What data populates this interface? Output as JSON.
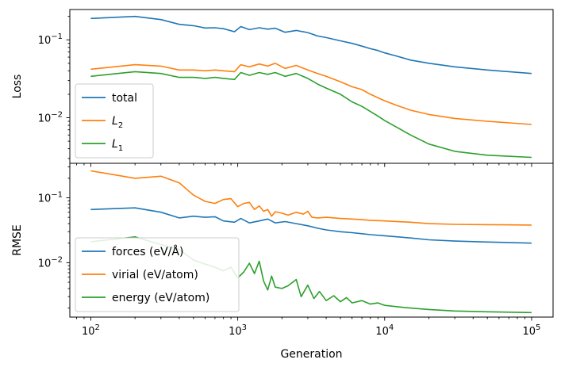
{
  "chart_data": [
    {
      "type": "line",
      "title": "",
      "xlabel": "",
      "ylabel": "Loss",
      "xscale": "log",
      "yscale": "log",
      "xlim": [
        72,
        140000
      ],
      "ylim": [
        0.0026,
        0.245
      ],
      "yticks": [
        {
          "value": 0.01,
          "base": "10",
          "exp": "−2"
        },
        {
          "value": 0.1,
          "base": "10",
          "exp": "−1"
        }
      ],
      "legend_position": "lower-left",
      "grid": false,
      "series": [
        {
          "name": "total",
          "sub": "",
          "color": "#1f77b4",
          "points": [
            [
              100,
              0.188
            ],
            [
              200,
              0.2
            ],
            [
              300,
              0.182
            ],
            [
              400,
              0.158
            ],
            [
              500,
              0.152
            ],
            [
              600,
              0.142
            ],
            [
              700,
              0.143
            ],
            [
              800,
              0.139
            ],
            [
              950,
              0.127
            ],
            [
              1050,
              0.148
            ],
            [
              1200,
              0.135
            ],
            [
              1400,
              0.143
            ],
            [
              1600,
              0.137
            ],
            [
              1800,
              0.141
            ],
            [
              2100,
              0.125
            ],
            [
              2500,
              0.132
            ],
            [
              3000,
              0.124
            ],
            [
              3500,
              0.112
            ],
            [
              4000,
              0.107
            ],
            [
              5000,
              0.097
            ],
            [
              6000,
              0.09
            ],
            [
              7000,
              0.083
            ],
            [
              8000,
              0.077
            ],
            [
              9000,
              0.073
            ],
            [
              10000,
              0.068
            ],
            [
              12000,
              0.062
            ],
            [
              15000,
              0.055
            ],
            [
              20000,
              0.05
            ],
            [
              30000,
              0.045
            ],
            [
              50000,
              0.041
            ],
            [
              100000,
              0.037
            ]
          ]
        },
        {
          "name": "L",
          "sub": "2",
          "color": "#ff7f0e",
          "points": [
            [
              100,
              0.042
            ],
            [
              200,
              0.048
            ],
            [
              300,
              0.046
            ],
            [
              400,
              0.041
            ],
            [
              500,
              0.041
            ],
            [
              600,
              0.04
            ],
            [
              700,
              0.041
            ],
            [
              800,
              0.04
            ],
            [
              950,
              0.039
            ],
            [
              1050,
              0.048
            ],
            [
              1200,
              0.045
            ],
            [
              1400,
              0.049
            ],
            [
              1600,
              0.046
            ],
            [
              1800,
              0.05
            ],
            [
              2100,
              0.043
            ],
            [
              2500,
              0.047
            ],
            [
              3000,
              0.041
            ],
            [
              3500,
              0.037
            ],
            [
              4000,
              0.034
            ],
            [
              5000,
              0.029
            ],
            [
              6000,
              0.025
            ],
            [
              7000,
              0.023
            ],
            [
              8000,
              0.02
            ],
            [
              9000,
              0.018
            ],
            [
              10000,
              0.0165
            ],
            [
              12000,
              0.0145
            ],
            [
              15000,
              0.0125
            ],
            [
              20000,
              0.011
            ],
            [
              30000,
              0.0098
            ],
            [
              50000,
              0.009
            ],
            [
              100000,
              0.0082
            ]
          ]
        },
        {
          "name": "L",
          "sub": "1",
          "color": "#2ca02c",
          "points": [
            [
              100,
              0.034
            ],
            [
              200,
              0.039
            ],
            [
              300,
              0.037
            ],
            [
              400,
              0.033
            ],
            [
              500,
              0.033
            ],
            [
              600,
              0.032
            ],
            [
              700,
              0.033
            ],
            [
              800,
              0.032
            ],
            [
              950,
              0.031
            ],
            [
              1050,
              0.038
            ],
            [
              1200,
              0.035
            ],
            [
              1400,
              0.038
            ],
            [
              1600,
              0.036
            ],
            [
              1800,
              0.038
            ],
            [
              2100,
              0.034
            ],
            [
              2500,
              0.037
            ],
            [
              3000,
              0.032
            ],
            [
              3500,
              0.027
            ],
            [
              4000,
              0.024
            ],
            [
              5000,
              0.02
            ],
            [
              6000,
              0.016
            ],
            [
              7000,
              0.014
            ],
            [
              8000,
              0.012
            ],
            [
              9000,
              0.0105
            ],
            [
              10000,
              0.0092
            ],
            [
              12000,
              0.0076
            ],
            [
              15000,
              0.006
            ],
            [
              20000,
              0.0046
            ],
            [
              30000,
              0.0037
            ],
            [
              50000,
              0.0033
            ],
            [
              100000,
              0.0031
            ]
          ]
        }
      ]
    },
    {
      "type": "line",
      "title": "",
      "xlabel": "Generation",
      "ylabel": "RMSE",
      "xscale": "log",
      "yscale": "log",
      "xlim": [
        72,
        140000
      ],
      "ylim": [
        0.00145,
        0.34
      ],
      "xticks": [
        {
          "value": 100,
          "base": "10",
          "exp": "2"
        },
        {
          "value": 1000,
          "base": "10",
          "exp": "3"
        },
        {
          "value": 10000,
          "base": "10",
          "exp": "4"
        },
        {
          "value": 100000,
          "base": "10",
          "exp": "5"
        }
      ],
      "yticks": [
        {
          "value": 0.01,
          "base": "10",
          "exp": "−2"
        },
        {
          "value": 0.1,
          "base": "10",
          "exp": "−1"
        }
      ],
      "legend_position": "lower-left",
      "grid": false,
      "series": [
        {
          "name": "forces (eV/Å)",
          "sub": "",
          "color": "#1f77b4",
          "points": [
            [
              100,
              0.066
            ],
            [
              200,
              0.07
            ],
            [
              300,
              0.06
            ],
            [
              400,
              0.049
            ],
            [
              500,
              0.052
            ],
            [
              600,
              0.05
            ],
            [
              700,
              0.051
            ],
            [
              800,
              0.044
            ],
            [
              950,
              0.042
            ],
            [
              1050,
              0.048
            ],
            [
              1200,
              0.041
            ],
            [
              1400,
              0.044
            ],
            [
              1600,
              0.047
            ],
            [
              1800,
              0.041
            ],
            [
              2100,
              0.043
            ],
            [
              2500,
              0.04
            ],
            [
              3000,
              0.037
            ],
            [
              3500,
              0.034
            ],
            [
              4000,
              0.032
            ],
            [
              5000,
              0.03
            ],
            [
              6000,
              0.029
            ],
            [
              7000,
              0.028
            ],
            [
              8000,
              0.027
            ],
            [
              10000,
              0.026
            ],
            [
              15000,
              0.024
            ],
            [
              20000,
              0.0225
            ],
            [
              30000,
              0.0215
            ],
            [
              50000,
              0.0208
            ],
            [
              100000,
              0.02
            ]
          ]
        },
        {
          "name": "virial (eV/atom)",
          "sub": "",
          "color": "#ff7f0e",
          "points": [
            [
              100,
              0.26
            ],
            [
              200,
              0.2
            ],
            [
              300,
              0.215
            ],
            [
              400,
              0.17
            ],
            [
              450,
              0.135
            ],
            [
              500,
              0.11
            ],
            [
              600,
              0.088
            ],
            [
              700,
              0.082
            ],
            [
              800,
              0.094
            ],
            [
              900,
              0.097
            ],
            [
              1000,
              0.073
            ],
            [
              1100,
              0.082
            ],
            [
              1200,
              0.085
            ],
            [
              1300,
              0.066
            ],
            [
              1400,
              0.075
            ],
            [
              1500,
              0.062
            ],
            [
              1600,
              0.066
            ],
            [
              1700,
              0.052
            ],
            [
              1800,
              0.061
            ],
            [
              2000,
              0.058
            ],
            [
              2200,
              0.054
            ],
            [
              2500,
              0.06
            ],
            [
              2800,
              0.056
            ],
            [
              3000,
              0.062
            ],
            [
              3200,
              0.05
            ],
            [
              3500,
              0.049
            ],
            [
              4000,
              0.05
            ],
            [
              5000,
              0.048
            ],
            [
              6000,
              0.047
            ],
            [
              7000,
              0.046
            ],
            [
              8000,
              0.045
            ],
            [
              10000,
              0.044
            ],
            [
              15000,
              0.042
            ],
            [
              20000,
              0.04
            ],
            [
              30000,
              0.039
            ],
            [
              50000,
              0.0385
            ],
            [
              100000,
              0.038
            ]
          ]
        },
        {
          "name": "energy (eV/atom)",
          "sub": "",
          "color": "#2ca02c",
          "points": [
            [
              100,
              0.021
            ],
            [
              200,
              0.025
            ],
            [
              300,
              0.019
            ],
            [
              400,
              0.016
            ],
            [
              500,
              0.011
            ],
            [
              600,
              0.0095
            ],
            [
              700,
              0.0085
            ],
            [
              800,
              0.0075
            ],
            [
              900,
              0.0085
            ],
            [
              1000,
              0.0058
            ],
            [
              1100,
              0.0072
            ],
            [
              1200,
              0.0098
            ],
            [
              1300,
              0.0068
            ],
            [
              1400,
              0.0105
            ],
            [
              1500,
              0.0052
            ],
            [
              1600,
              0.0038
            ],
            [
              1700,
              0.0062
            ],
            [
              1800,
              0.0042
            ],
            [
              2000,
              0.004
            ],
            [
              2200,
              0.0044
            ],
            [
              2500,
              0.0055
            ],
            [
              2700,
              0.003
            ],
            [
              3000,
              0.0045
            ],
            [
              3300,
              0.0028
            ],
            [
              3600,
              0.0036
            ],
            [
              4000,
              0.0026
            ],
            [
              4500,
              0.0031
            ],
            [
              5000,
              0.0025
            ],
            [
              5500,
              0.0029
            ],
            [
              6000,
              0.0024
            ],
            [
              7000,
              0.0026
            ],
            [
              8000,
              0.0023
            ],
            [
              9000,
              0.0024
            ],
            [
              10000,
              0.0022
            ],
            [
              12000,
              0.0021
            ],
            [
              15000,
              0.002
            ],
            [
              20000,
              0.0019
            ],
            [
              30000,
              0.0018
            ],
            [
              50000,
              0.00175
            ],
            [
              100000,
              0.0017
            ]
          ]
        }
      ]
    }
  ]
}
